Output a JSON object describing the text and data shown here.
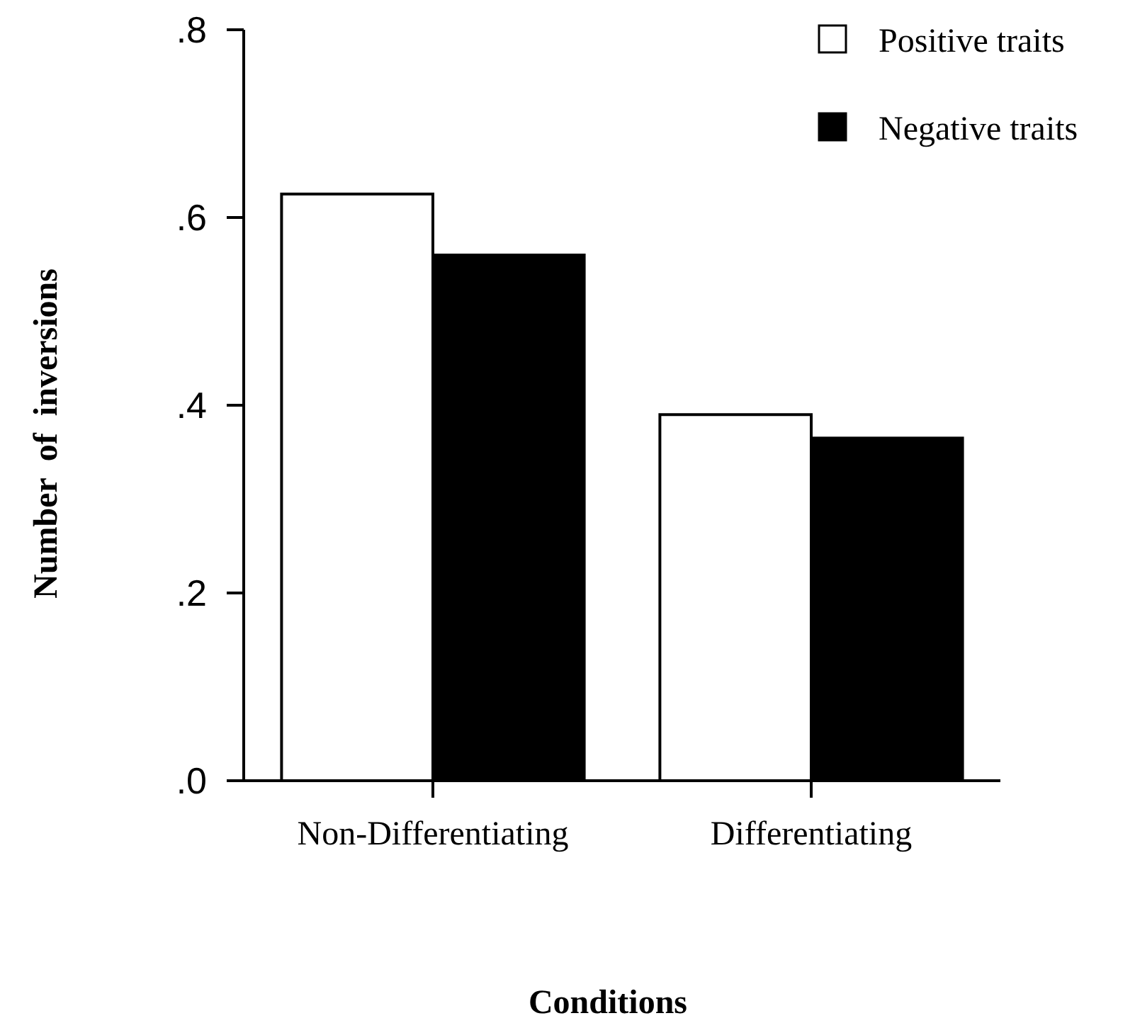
{
  "chart_data": {
    "type": "bar",
    "xlabel": "Conditions",
    "ylabel": "Number  of  inversions",
    "categories": [
      "Non-Differentiating",
      "Differentiating"
    ],
    "series": [
      {
        "name": "Positive traits",
        "color": "#ffffff",
        "values": [
          0.625,
          0.39
        ]
      },
      {
        "name": "Negative traits",
        "color": "#000000",
        "values": [
          0.56,
          0.365
        ]
      }
    ],
    "ylim": [
      0,
      0.8
    ],
    "yticks": [
      {
        "value": 0,
        "label": ".0"
      },
      {
        "value": 0.2,
        "label": ".2"
      },
      {
        "value": 0.4,
        "label": ".4"
      },
      {
        "value": 0.6,
        "label": ".6"
      },
      {
        "value": 0.8,
        "label": ".8"
      }
    ],
    "grid": false,
    "legend": "top right"
  }
}
